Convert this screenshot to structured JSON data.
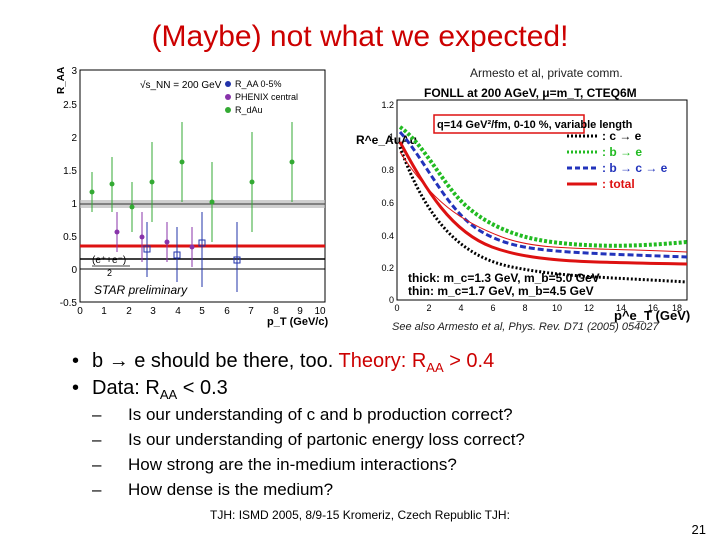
{
  "slide": {
    "title": "(Maybe) not what we expected!",
    "credit": "Armesto et al, private comm.",
    "see_also": "See also Armesto et al, Phys. Rev. D71 (2005) 054027",
    "footer": "TJH: ISMD 2005, 8/9-15 Kromeriz, Czech Republic TJH:",
    "page_number": "21"
  },
  "bullets": [
    {
      "marker": "•",
      "text_a": "b ",
      "arrow": "→",
      "text_b": " e should be there, too.  ",
      "theory_label": "Theory:  R",
      "theory_sub": "AA",
      "theory_tail": " > 0.4"
    },
    {
      "marker": "•",
      "text_a": "Data:  R",
      "sub": "AA",
      "text_b": " < 0.3"
    }
  ],
  "sub_bullets": [
    {
      "marker": "–",
      "text": "Is our understanding of c and b production correct?"
    },
    {
      "marker": "–",
      "text": "Is our understanding of partonic energy loss correct?"
    },
    {
      "marker": "–",
      "text": "How strong are the in-medium interactions?"
    },
    {
      "marker": "–",
      "text": "How dense is the medium?"
    }
  ],
  "left_plot": {
    "ylabel": "R_AA",
    "energy": "√s_NN = 200 GeV",
    "legend": [
      "R_AA 0-5%",
      "PHENIX central",
      "R_dAu"
    ],
    "legend_colors": [
      "#2233aa",
      "#8833aa",
      "#33aa33"
    ],
    "watermark": "STAR preliminary",
    "formula": "(e⁺+e⁻)",
    "formula_den": "2",
    "xlabel": "p_T (GeV/c)",
    "xticks": [
      "0",
      "1",
      "2",
      "3",
      "4",
      "5",
      "6",
      "7",
      "8",
      "9",
      "10"
    ],
    "yticks": [
      "-0.5",
      "0",
      "0.5",
      "1",
      "1.5",
      "2",
      "2.5",
      "3"
    ],
    "axis_range_x": [
      0,
      10
    ],
    "axis_range_y": [
      -0.5,
      3
    ]
  },
  "right_plot": {
    "header": "FONLL at 200 AGeV, μ=m_T, CTEQ6M",
    "ylabel": "R^e_AuAu",
    "box_label": "q=14 GeV²/fm, 0-10 %, variable length",
    "legend": [
      {
        "label": ": c → e",
        "color": "#000000"
      },
      {
        "label": ": b → e",
        "color": "#22bb22"
      },
      {
        "label": ": b → c → e",
        "color": "#2233bb"
      },
      {
        "label": ": total",
        "color": "#dd1111"
      }
    ],
    "thick_label": "thick: m_c=1.3 GeV, m_b=5.0 GeV",
    "thin_label": "thin: m_c=1.7 GeV, m_b=4.5 GeV",
    "xlabel": "p^e_T (GeV)",
    "xticks": [
      "0",
      "2",
      "4",
      "6",
      "8",
      "10",
      "12",
      "14",
      "16",
      "18"
    ],
    "yticks": [
      "0",
      "0.2",
      "0.4",
      "0.6",
      "0.8",
      "1",
      "1.2"
    ],
    "axis_range_x": [
      0,
      20
    ],
    "axis_range_y": [
      0,
      1.2
    ]
  },
  "colors": {
    "title": "#cc0000",
    "theory": "#cc0000"
  }
}
